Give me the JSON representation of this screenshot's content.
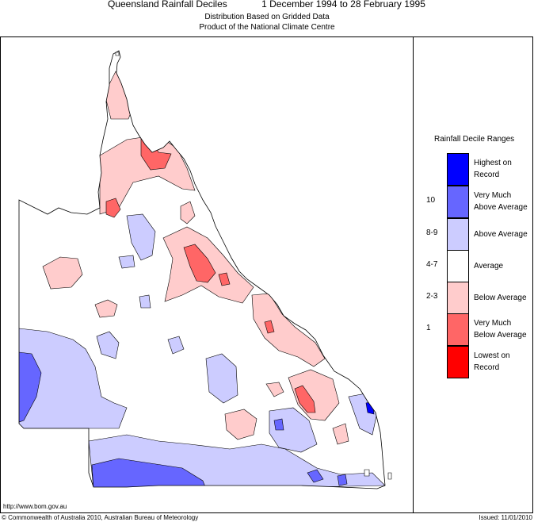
{
  "header": {
    "title": "Queensland Rainfall Deciles",
    "period": "1 December 1994 to 28 February 1995",
    "subtitle1": "Distribution Based on Gridded Data",
    "subtitle2": "Product of the National Climate Centre"
  },
  "legend": {
    "title": "Rainfall Decile Ranges",
    "items": [
      {
        "range": "",
        "label": "Highest on Record",
        "color": "#0000ff"
      },
      {
        "range": "10",
        "label": "Very Much Above Average",
        "color": "#6666ff"
      },
      {
        "range": "8-9",
        "label": "Above Average",
        "color": "#ccccff"
      },
      {
        "range": "4-7",
        "label": "Average",
        "color": "#ffffff"
      },
      {
        "range": "2-3",
        "label": "Below Average",
        "color": "#ffcccc"
      },
      {
        "range": "1",
        "label": "Very Much Below Average",
        "color": "#ff6666"
      },
      {
        "range": "",
        "label": "Lowest on Record",
        "color": "#ff0000"
      }
    ]
  },
  "footer": {
    "url": "http://www.bom.gov.au",
    "copyright": "© Commonwealth of Australia 2010, Australian Bureau of Meteorology",
    "issued": "Issued: 11/01/2010"
  }
}
